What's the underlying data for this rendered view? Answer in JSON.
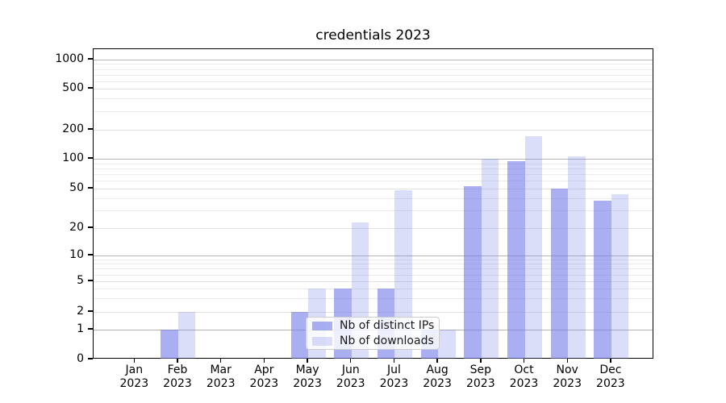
{
  "title": "credentials 2023",
  "year": "2023",
  "months": [
    "Jan",
    "Feb",
    "Mar",
    "Apr",
    "May",
    "Jun",
    "Jul",
    "Aug",
    "Sep",
    "Oct",
    "Nov",
    "Dec"
  ],
  "legend": {
    "items": [
      {
        "label": "Nb of distinct IPs",
        "series": "distinct_ips"
      },
      {
        "label": "Nb of downloads",
        "series": "downloads"
      }
    ]
  },
  "colors": {
    "bar_base_rgb": "113,122,231",
    "distinct_ips_alpha": 0.6,
    "downloads_alpha": 0.25,
    "grid_major": "#b4b4b4",
    "grid_labeled_minor": "#e2e2e2",
    "grid_minor": "#ebebeb",
    "axis": "#000000",
    "legend_bg": "rgba(255,255,255,0.8)",
    "legend_border": "#cccccc"
  },
  "chart_data": {
    "type": "bar",
    "title": "credentials 2023",
    "categories": [
      "Jan 2023",
      "Feb 2023",
      "Mar 2023",
      "Apr 2023",
      "May 2023",
      "Jun 2023",
      "Jul 2023",
      "Aug 2023",
      "Sep 2023",
      "Oct 2023",
      "Nov 2023",
      "Dec 2023"
    ],
    "series": [
      {
        "name": "Nb of distinct IPs",
        "values": [
          0,
          1,
          0,
          0,
          2,
          4,
          4,
          1,
          53,
          95,
          50,
          38
        ]
      },
      {
        "name": "Nb of downloads",
        "values": [
          0,
          2,
          0,
          0,
          4,
          23,
          48,
          1,
          100,
          170,
          105,
          44
        ]
      }
    ],
    "xlabel": "",
    "ylabel": "",
    "yscale": "asinh (log-like above 1, compressed toward 0)",
    "ylim": [
      0,
      1300
    ],
    "yticks": [
      0,
      1,
      2,
      5,
      10,
      20,
      50,
      100,
      200,
      500,
      1000
    ],
    "yticks_major_decades": [
      1,
      10,
      100,
      1000
    ],
    "yticks_labeled_minor": [
      2,
      5,
      20,
      50,
      200,
      500
    ],
    "yminor_gridlines": [
      3,
      4,
      6,
      7,
      8,
      9,
      30,
      40,
      60,
      70,
      80,
      90,
      300,
      400,
      600,
      700,
      800,
      900
    ],
    "grid": "horizontal major+minor",
    "legend_position": "inside lower-center-left, semi-transparent over Jul/Aug bars",
    "bar_layout": "two bars per month side by side, distinct IPs left, downloads right"
  }
}
